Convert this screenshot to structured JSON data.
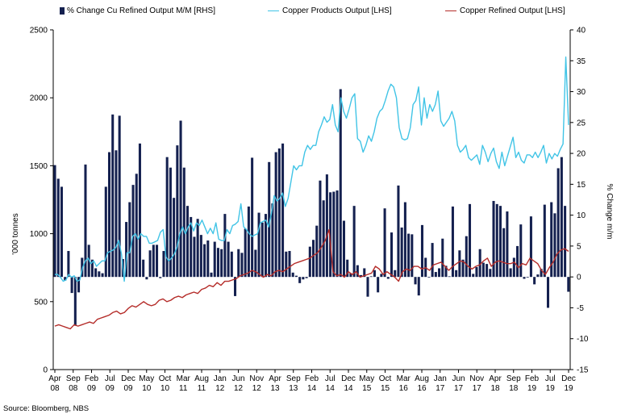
{
  "chart_data": {
    "type": "bar+line",
    "source": "Source: Bloomberg, NBS",
    "ylabel_left": "'000 tonnes",
    "ylabel_right": "% Change m/m",
    "ylim_left": [
      0,
      2500
    ],
    "ylim_right": [
      -15,
      40
    ],
    "yticks_left": [
      "0",
      "500",
      "1000",
      "1500",
      "2000",
      "2500"
    ],
    "yticks_right": [
      "-15",
      "-10",
      "-5",
      "0",
      "5",
      "10",
      "15",
      "20",
      "25",
      "30",
      "35",
      "40"
    ],
    "x_tick_labels": [
      [
        "Apr",
        "08"
      ],
      [
        "Sep",
        "08"
      ],
      [
        "Feb",
        "09"
      ],
      [
        "Jul",
        "09"
      ],
      [
        "Dec",
        "09"
      ],
      [
        "May",
        "10"
      ],
      [
        "Oct",
        "10"
      ],
      [
        "Mar",
        "11"
      ],
      [
        "Aug",
        "11"
      ],
      [
        "Jan",
        "12"
      ],
      [
        "Jun",
        "12"
      ],
      [
        "Nov",
        "12"
      ],
      [
        "Apr",
        "13"
      ],
      [
        "Sep",
        "13"
      ],
      [
        "Feb",
        "14"
      ],
      [
        "Jul",
        "14"
      ],
      [
        "Dec",
        "14"
      ],
      [
        "May",
        "15"
      ],
      [
        "Oct",
        "15"
      ],
      [
        "Mar",
        "16"
      ],
      [
        "Aug",
        "16"
      ],
      [
        "Jan",
        "17"
      ],
      [
        "Jun",
        "17"
      ],
      [
        "Nov",
        "17"
      ],
      [
        "Apr",
        "18"
      ],
      [
        "Sep",
        "18"
      ],
      [
        "Feb",
        "19"
      ],
      [
        "Jul",
        "19"
      ],
      [
        "Dec",
        "19"
      ]
    ],
    "series": [
      {
        "name": "% Change Cu Refined Output M/M [RHS]",
        "kind": "bar",
        "axis": "right",
        "color": "#14204f",
        "values": [
          18.1,
          15.9,
          14.6,
          -0.6,
          4.2,
          -2.6,
          -7.9,
          -2.5,
          3.1,
          18.2,
          5.2,
          2.8,
          1.4,
          0.9,
          0.6,
          14.6,
          20.2,
          26.3,
          20.5,
          26.1,
          2.9,
          8.9,
          12.1,
          14.9,
          16.7,
          21.6,
          2.8,
          -0.4,
          4.3,
          5.2,
          5.2,
          -0.2,
          4.2,
          19.4,
          17.7,
          12.8,
          21.3,
          25.3,
          17.7,
          11.5,
          9.7,
          6.5,
          9.4,
          6.8,
          5.3,
          5.9,
          0.7,
          5.7,
          4.7,
          4.5,
          10.2,
          5.7,
          4.1,
          -3.1,
          4.5,
          3.9,
          7.8,
          11.4,
          19.3,
          4.4,
          10.4,
          8.8,
          10.2,
          18.6,
          11.9,
          20.2,
          20.8,
          21.6,
          4.1,
          4.2,
          0.7,
          0.2,
          -1.0,
          -0.4,
          -0.2,
          4.9,
          6.0,
          8.3,
          15.6,
          12.4,
          16.6,
          13.7,
          13.8,
          14.0,
          30.4,
          9.1,
          2.8,
          0.6,
          11.5,
          1.9,
          0.3,
          1.4,
          -3.2,
          0.1,
          1.1,
          -2.5,
          0.5,
          11.1,
          -0.3,
          7.2,
          1.1,
          14.8,
          8.0,
          12.1,
          7.0,
          6.9,
          -1.2,
          -3.0,
          8.4,
          3.1,
          -0.1,
          5.5,
          0.8,
          1.4,
          6.2,
          1.8,
          0.1,
          11.4,
          1.1,
          4.3,
          2.8,
          6.6,
          11.8,
          0.5,
          1.6,
          4.5,
          2.3,
          2.1,
          1.3,
          12.3,
          11.8,
          11.5,
          7.9,
          10.6,
          1.4,
          3.1,
          5.0,
          8.5,
          -0.3,
          -0.1,
          9.8,
          -1.2,
          0.4,
          1.3,
          11.7,
          -5.0,
          12.1,
          10.3,
          17.6,
          19.4,
          11.5,
          -2.4
        ]
      },
      {
        "name": "Copper Products Output [LHS]",
        "kind": "line",
        "axis": "left",
        "color": "#41c4e6",
        "values": [
          700,
          700,
          680,
          650,
          660,
          700,
          680,
          690,
          650,
          660,
          750,
          800,
          820,
          780,
          800,
          760,
          780,
          800,
          800,
          860,
          870,
          880,
          900,
          950,
          850,
          650,
          860,
          860,
          980,
          1000,
          960,
          1000,
          980,
          980,
          930,
          930,
          940,
          950,
          1010,
          1030,
          830,
          800,
          820,
          850,
          900,
          1000,
          1050,
          1000,
          1050,
          1080,
          1020,
          1080,
          1060,
          1100,
          1050,
          1000,
          1040,
          1000,
          1080,
          960,
          950,
          950,
          1030,
          1000,
          1060,
          1070,
          1090,
          1220,
          1050,
          1030,
          1000,
          980,
          990,
          1000,
          1080,
          1090,
          1100,
          1050,
          1150,
          1280,
          1240,
          1260,
          1300,
          1200,
          1260,
          1380,
          1500,
          1470,
          1500,
          1500,
          1600,
          1650,
          1620,
          1650,
          1650,
          1750,
          1800,
          1860,
          1820,
          1840,
          1950,
          1800,
          1750,
          2000,
          1900,
          1850,
          1920,
          2000,
          2030,
          1700,
          1680,
          1600,
          1650,
          1720,
          1680,
          1750,
          1850,
          1900,
          1920,
          1980,
          2050,
          2100,
          2080,
          2000,
          1780,
          1700,
          1690,
          1700,
          1780,
          1950,
          1980,
          2080,
          1800,
          2000,
          1850,
          1950,
          1900,
          1950,
          2050,
          1830,
          1790,
          1820,
          1850,
          1900,
          1830,
          1650,
          1600,
          1620,
          1650,
          1560,
          1540,
          1560,
          1580,
          1510,
          1650,
          1600,
          1530,
          1590,
          1630,
          1530,
          1480,
          1600,
          1500,
          1570,
          1640,
          1710,
          1560,
          1600,
          1540,
          1520,
          1580,
          1580,
          1560,
          1600,
          1560,
          1600,
          1650,
          1520,
          1590,
          1550,
          1590,
          1570,
          1620,
          1660,
          2300,
          1800
        ],
        "x_points": 175
      },
      {
        "name": "Copper Refined Output [LHS]",
        "kind": "line",
        "axis": "left",
        "color": "#b52d2a",
        "values": [
          320,
          330,
          320,
          310,
          300,
          330,
          320,
          330,
          340,
          350,
          340,
          370,
          380,
          390,
          400,
          420,
          430,
          410,
          420,
          450,
          470,
          460,
          480,
          500,
          480,
          470,
          480,
          510,
          520,
          500,
          510,
          530,
          540,
          530,
          550,
          560,
          570,
          560,
          590,
          600,
          620,
          610,
          640,
          620,
          650,
          650,
          660,
          670,
          690,
          700,
          710,
          730,
          720,
          700,
          680,
          700,
          690,
          720,
          730,
          720,
          740,
          760,
          780,
          790,
          800,
          810,
          820,
          840,
          860,
          900,
          950,
          1030,
          720,
          690,
          700,
          680,
          720,
          700,
          720,
          680,
          690,
          700,
          710,
          760,
          740,
          700,
          720,
          700,
          680,
          650,
          720,
          740,
          730,
          760,
          760,
          740,
          750,
          730,
          770,
          780,
          790,
          760,
          730,
          760,
          780,
          800,
          790,
          760,
          740,
          760,
          770,
          800,
          820,
          760,
          790,
          800,
          790,
          780,
          780,
          790,
          750,
          780,
          770,
          820,
          800,
          780,
          730,
          700,
          750,
          790,
          850,
          880,
          890,
          870
        ]
      }
    ]
  }
}
